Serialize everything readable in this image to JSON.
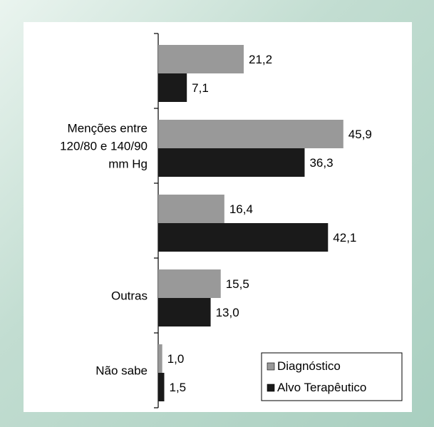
{
  "chart_data": {
    "type": "bar",
    "orientation": "horizontal",
    "categories": [
      [
        "",
        "",
        ""
      ],
      [
        "Menções entre",
        "120/80 e 140/90",
        "mm Hg"
      ],
      [
        "",
        "",
        ""
      ],
      [
        "Outras",
        "",
        ""
      ],
      [
        "Não sabe",
        "",
        ""
      ]
    ],
    "series": [
      {
        "name": "Diagnóstico",
        "color": "#999999",
        "values": [
          21.2,
          45.9,
          16.4,
          15.5,
          1.0
        ],
        "labels": [
          "21,2",
          "45,9",
          "16,4",
          "15,5",
          "1,0"
        ]
      },
      {
        "name": "Alvo Terapêutico",
        "color": "#1a1a1a",
        "values": [
          7.1,
          36.3,
          42.1,
          13.0,
          1.5
        ],
        "labels": [
          "7,1",
          "36,3",
          "42,1",
          "13,0",
          "1,5"
        ]
      }
    ],
    "xlim": [
      0,
      60
    ],
    "legend_position": "bottom-right",
    "grid": false
  }
}
